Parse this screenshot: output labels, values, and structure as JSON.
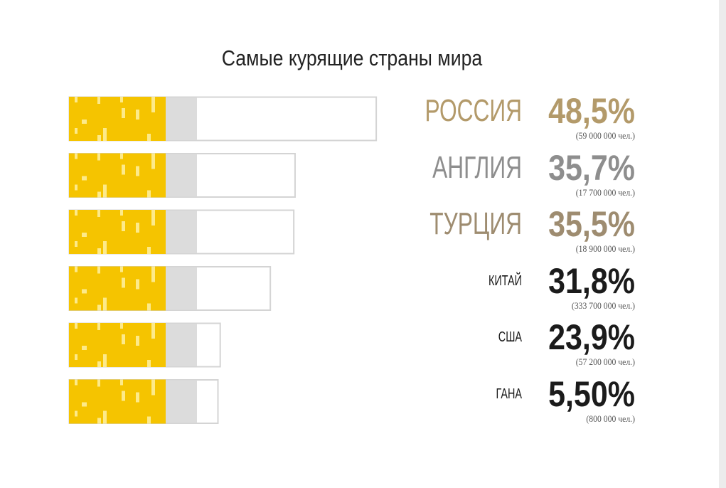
{
  "chart_data": {
    "type": "bar",
    "title": "Самые курящие страны мира",
    "categories": [
      "РОССИЯ",
      "АНГЛИЯ",
      "ТУРЦИЯ",
      "КИТАЙ",
      "США",
      "ГАНА"
    ],
    "values": [
      48.5,
      35.7,
      35.5,
      31.8,
      23.9,
      5.5
    ],
    "value_labels": [
      "48,5%",
      "35,7%",
      "35,5%",
      "31,8%",
      "23,9%",
      "5,50%"
    ],
    "people_labels": [
      "(59 000 000 чел.)",
      "(17 700 000 чел.)",
      "(18 900 000 чел.)",
      "(333 700 000 чел.)",
      "(57 200 000 чел.)",
      "(800 000 чел.)"
    ],
    "xlim": [
      0,
      50
    ],
    "grid": false,
    "legend": "none",
    "colors": {
      "filter": "#f5c400",
      "filter_dots": "#fdea8a",
      "band": "#dcdcdc",
      "paper": "#ffffff",
      "paper_border": "#d4d4d4",
      "label_russia": "#b39a6a",
      "label_england": "#8e8e8e",
      "label_turkey": "#9e8c70",
      "label_dark": "#1b1b1b"
    }
  }
}
